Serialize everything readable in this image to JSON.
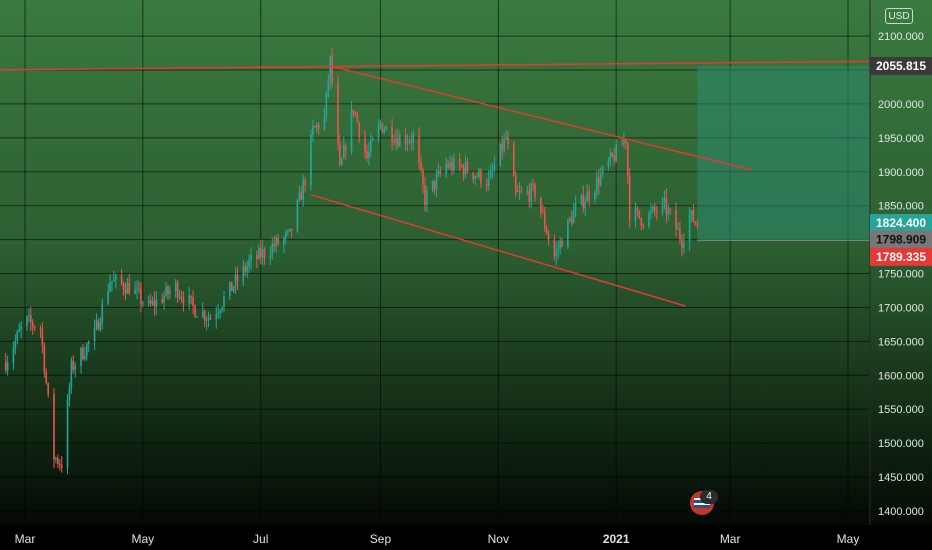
{
  "header": {
    "currency": "USD"
  },
  "news": {
    "count": "4"
  },
  "price_tags": {
    "resistance": "2055.815",
    "last": "1824.400",
    "gray": "1798.909",
    "stop": "1789.335"
  },
  "colors": {
    "bg_top": "#3a7a40",
    "bg_bottom": "#000000",
    "candle_up": "#26a69a",
    "candle_down": "#ef5350",
    "trendline": "#e53935",
    "target_zone": "#2e8b6f",
    "tag_last": "#26a69a",
    "tag_stop": "#e53935",
    "tag_gray": "#777777",
    "tag_resistance": "#3a3a3a"
  },
  "chart_data": {
    "type": "candlestick",
    "title": "",
    "xlabel": "",
    "ylabel": "",
    "ylim": [
      1390,
      2150
    ],
    "y_ticks": [
      "1400.000",
      "1450.000",
      "1500.000",
      "1550.000",
      "1600.000",
      "1650.000",
      "1700.000",
      "1750.000",
      "1800.000",
      "1850.000",
      "1900.000",
      "1950.000",
      "2000.000",
      "2050.000",
      "2100.000"
    ],
    "x_ticks": [
      "Mar",
      "May",
      "Jul",
      "Sep",
      "Nov",
      "2021",
      "Mar",
      "May"
    ],
    "grid": true,
    "approx_close_path": [
      [
        "2020-02-20",
        1620
      ],
      [
        "2020-03-01",
        1680
      ],
      [
        "2020-03-09",
        1670
      ],
      [
        "2020-03-16",
        1480
      ],
      [
        "2020-03-20",
        1470
      ],
      [
        "2020-03-25",
        1610
      ],
      [
        "2020-04-06",
        1660
      ],
      [
        "2020-04-14",
        1740
      ],
      [
        "2020-04-24",
        1730
      ],
      [
        "2020-05-04",
        1700
      ],
      [
        "2020-05-18",
        1730
      ],
      [
        "2020-05-27",
        1700
      ],
      [
        "2020-06-05",
        1685
      ],
      [
        "2020-06-15",
        1725
      ],
      [
        "2020-06-25",
        1765
      ],
      [
        "2020-07-07",
        1790
      ],
      [
        "2020-07-16",
        1805
      ],
      [
        "2020-07-24",
        1890
      ],
      [
        "2020-07-28",
        1960
      ],
      [
        "2020-08-03",
        1980
      ],
      [
        "2020-08-06",
        2063
      ],
      [
        "2020-08-11",
        1900
      ],
      [
        "2020-08-18",
        1995
      ],
      [
        "2020-08-25",
        1920
      ],
      [
        "2020-09-01",
        1970
      ],
      [
        "2020-09-10",
        1950
      ],
      [
        "2020-09-18",
        1950
      ],
      [
        "2020-09-24",
        1860
      ],
      [
        "2020-10-05",
        1910
      ],
      [
        "2020-10-15",
        1905
      ],
      [
        "2020-10-27",
        1885
      ],
      [
        "2020-11-05",
        1950
      ],
      [
        "2020-11-10",
        1865
      ],
      [
        "2020-11-20",
        1870
      ],
      [
        "2020-11-30",
        1775
      ],
      [
        "2020-12-10",
        1840
      ],
      [
        "2020-12-21",
        1880
      ],
      [
        "2021-01-06",
        1950
      ],
      [
        "2021-01-08",
        1840
      ],
      [
        "2021-01-15",
        1830
      ],
      [
        "2021-01-26",
        1850
      ],
      [
        "2021-02-04",
        1800
      ],
      [
        "2021-02-08",
        1835
      ],
      [
        "2021-02-12",
        1824
      ]
    ],
    "lines": [
      {
        "name": "resistance",
        "from": [
          "2020-02-10",
          2050
        ],
        "to": [
          "2021-05-20",
          2063
        ]
      },
      {
        "name": "channel-upper",
        "from": [
          "2020-08-07",
          2055
        ],
        "to": [
          "2021-03-12",
          1903
        ]
      },
      {
        "name": "channel-lower",
        "from": [
          "2020-07-27",
          1866
        ],
        "to": [
          "2021-02-06",
          1702
        ]
      }
    ],
    "target_zone": {
      "from": "2021-02-12",
      "to": "2021-05-25",
      "low": 1798.909,
      "high": 2055.815
    },
    "price_levels": [
      2055.815,
      1824.4,
      1798.909,
      1789.335
    ]
  }
}
